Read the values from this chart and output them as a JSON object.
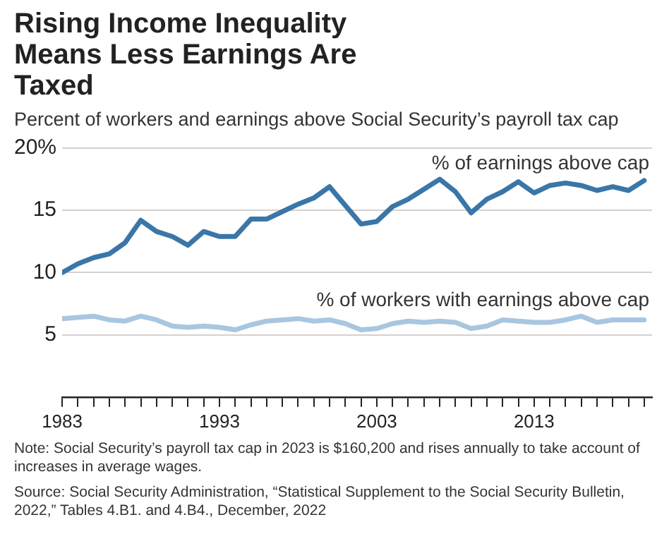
{
  "chart_data": {
    "type": "line",
    "title": "Rising Income Inequality Means Less Earnings Are Taxed",
    "subtitle": "Percent of workers and earnings above Social Security’s payroll tax cap",
    "x": [
      1983,
      1984,
      1985,
      1986,
      1987,
      1988,
      1989,
      1990,
      1991,
      1992,
      1993,
      1994,
      1995,
      1996,
      1997,
      1998,
      1999,
      2000,
      2001,
      2002,
      2003,
      2004,
      2005,
      2006,
      2007,
      2008,
      2009,
      2010,
      2011,
      2012,
      2013,
      2014,
      2015,
      2016,
      2017,
      2018,
      2019,
      2020
    ],
    "series": [
      {
        "name": "% of earnings above cap",
        "color": "#3a76a8",
        "values": [
          10.0,
          10.7,
          11.2,
          11.5,
          12.4,
          14.2,
          13.3,
          12.9,
          12.2,
          13.3,
          12.9,
          12.9,
          14.3,
          14.3,
          14.9,
          15.5,
          16.0,
          16.9,
          15.4,
          13.9,
          14.1,
          15.3,
          15.9,
          16.7,
          17.5,
          16.5,
          14.8,
          15.9,
          16.5,
          17.3,
          16.4,
          17.0,
          17.2,
          17.0,
          16.6,
          16.9,
          16.6,
          17.4
        ]
      },
      {
        "name": "% of workers with earnings above cap",
        "color": "#a9c6e0",
        "values": [
          6.3,
          6.4,
          6.5,
          6.2,
          6.1,
          6.5,
          6.2,
          5.7,
          5.6,
          5.7,
          5.6,
          5.4,
          5.8,
          6.1,
          6.2,
          6.3,
          6.1,
          6.2,
          5.9,
          5.4,
          5.5,
          5.9,
          6.1,
          6.0,
          6.1,
          6.0,
          5.5,
          5.7,
          6.2,
          6.1,
          6.0,
          6.0,
          6.2,
          6.5,
          6.0,
          6.2,
          6.2,
          6.2
        ]
      }
    ],
    "xlim": [
      1983,
      2020.5
    ],
    "xticks": [
      1983,
      {
        "value": 1984,
        "label": null
      },
      {
        "value": 1985,
        "label": null
      },
      {
        "value": 1986,
        "label": null
      },
      {
        "value": 1987,
        "label": null
      },
      {
        "value": 1988,
        "label": null
      },
      {
        "value": 1989,
        "label": null
      },
      {
        "value": 1990,
        "label": null
      },
      {
        "value": 1991,
        "label": null
      },
      {
        "value": 1992,
        "label": null
      },
      1993,
      {
        "value": 1994,
        "label": null
      },
      {
        "value": 1995,
        "label": null
      },
      {
        "value": 1996,
        "label": null
      },
      {
        "value": 1997,
        "label": null
      },
      {
        "value": 1998,
        "label": null
      },
      {
        "value": 1999,
        "label": null
      },
      {
        "value": 2000,
        "label": null
      },
      {
        "value": 2001,
        "label": null
      },
      {
        "value": 2002,
        "label": null
      },
      2003,
      {
        "value": 2004,
        "label": null
      },
      {
        "value": 2005,
        "label": null
      },
      {
        "value": 2006,
        "label": null
      },
      {
        "value": 2007,
        "label": null
      },
      {
        "value": 2008,
        "label": null
      },
      {
        "value": 2009,
        "label": null
      },
      {
        "value": 2010,
        "label": null
      },
      {
        "value": 2011,
        "label": null
      },
      {
        "value": 2012,
        "label": null
      },
      2013,
      {
        "value": 2014,
        "label": null
      },
      {
        "value": 2015,
        "label": null
      },
      {
        "value": 2016,
        "label": null
      },
      {
        "value": 2017,
        "label": null
      },
      {
        "value": 2018,
        "label": null
      },
      {
        "value": 2019,
        "label": null
      },
      {
        "value": 2020,
        "label": null
      }
    ],
    "ylim": [
      0,
      20
    ],
    "yticks": [
      5,
      10,
      15,
      {
        "value": 20,
        "label": "20%"
      }
    ],
    "grid": "y",
    "legend": false,
    "marker": "none",
    "line_style": "solid",
    "annotations": [
      "Note: Social Security’s payroll tax cap in 2023 is $160,200 and rises annually to take account of increases in average wages.",
      "Source: Social Security Administration, “Statistical Supplement to the Social Security Bulletin, 2022,” Tables 4.B1. and 4.B4., December, 2022"
    ]
  }
}
